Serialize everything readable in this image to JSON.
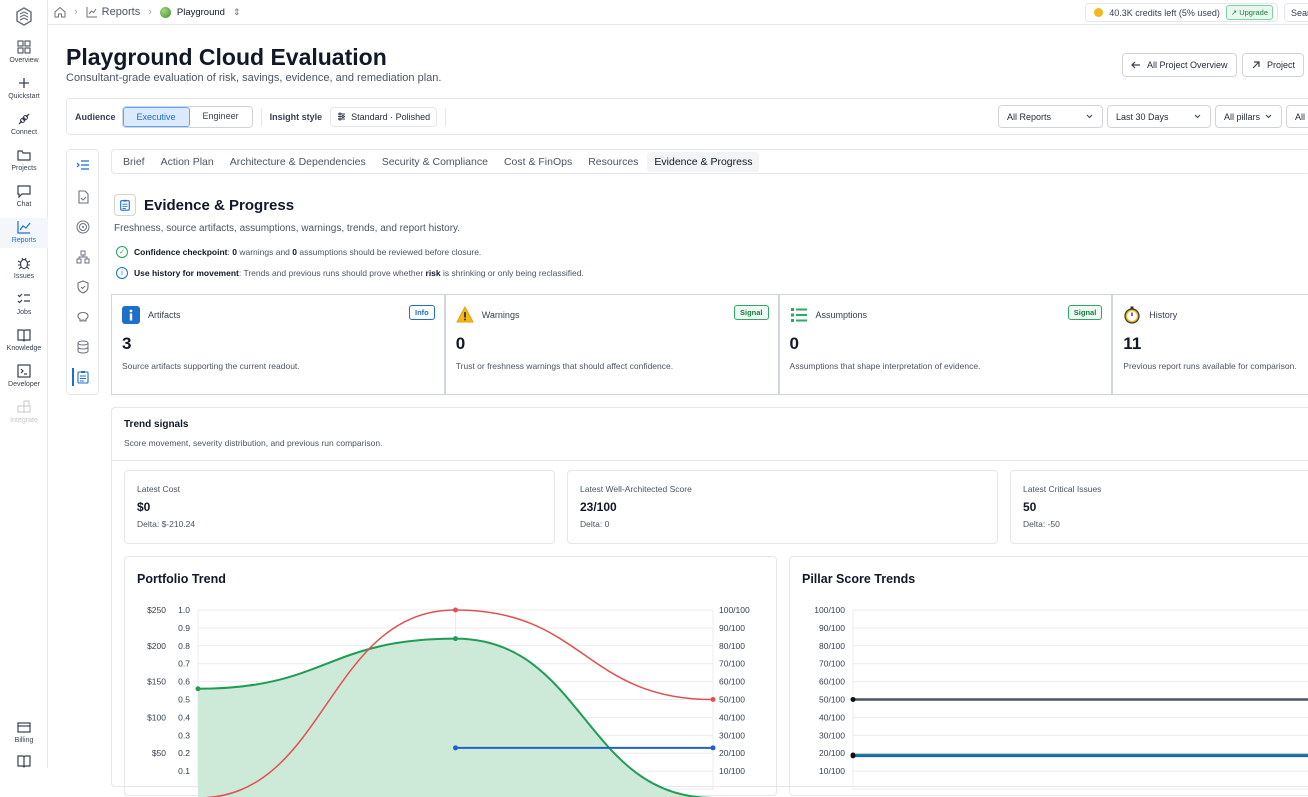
{
  "nav": {
    "items": [
      {
        "label": "Overview",
        "icon": "grid-icon"
      },
      {
        "label": "Quickstart",
        "icon": "plus-icon"
      },
      {
        "label": "Connect",
        "icon": "plug-icon"
      },
      {
        "label": "Projects",
        "icon": "folder-icon"
      },
      {
        "label": "Chat",
        "icon": "chat-icon"
      },
      {
        "label": "Reports",
        "icon": "chart-icon",
        "active": true
      },
      {
        "label": "Issues",
        "icon": "bug-icon"
      },
      {
        "label": "Jobs",
        "icon": "checklist-icon"
      },
      {
        "label": "Knowledge",
        "icon": "book-icon"
      },
      {
        "label": "Developer",
        "icon": "terminal-icon"
      },
      {
        "label": "Integrate",
        "icon": "puzzle-icon",
        "disabled": true
      }
    ],
    "billing_label": "Billing"
  },
  "breadcrumb": {
    "reports": "Reports",
    "project": "Playground"
  },
  "credits": {
    "text": "40.3K credits left (5% used)",
    "upgrade": "Upgrade"
  },
  "search": {
    "label": "Search"
  },
  "header": {
    "title": "Playground Cloud Evaluation",
    "subtitle": "Consultant-grade evaluation of risk, savings, evidence, and remediation plan.",
    "overview_button": "All Project Overview",
    "project_button": "Project"
  },
  "controls": {
    "audience_label": "Audience",
    "audience_options": [
      "Executive",
      "Engineer"
    ],
    "audience_selected": "Executive",
    "insight_label": "Insight style",
    "insight_value": "Standard · Polished",
    "filters": [
      "All Reports",
      "Last 30 Days",
      "All pillars",
      "All"
    ]
  },
  "tabs": [
    "Brief",
    "Action Plan",
    "Architecture & Dependencies",
    "Security & Compliance",
    "Cost & FinOps",
    "Resources",
    "Evidence & Progress"
  ],
  "active_tab": "Evidence & Progress",
  "section": {
    "title": "Evidence & Progress",
    "subtitle": "Freshness, source artifacts, assumptions, warnings, trends, and report history.",
    "note1": {
      "label": "Confidence checkpoint",
      "t1": ": ",
      "n1": "0",
      "t2": " warnings and ",
      "n2": "0",
      "t3": " assumptions should be reviewed before closure."
    },
    "note2": {
      "label": "Use history for movement",
      "t1": ": Trends and previous runs should prove whether ",
      "b": "risk",
      "t2": " is shrinking or only being reclassified."
    }
  },
  "metrics": [
    {
      "title": "Artifacts",
      "badge": "Info",
      "value": "3",
      "desc": "Source artifacts supporting the current readout."
    },
    {
      "title": "Warnings",
      "badge": "Signal",
      "value": "0",
      "desc": "Trust or freshness warnings that should affect confidence."
    },
    {
      "title": "Assumptions",
      "badge": "Signal",
      "value": "0",
      "desc": "Assumptions that shape interpretation of evidence."
    },
    {
      "title": "History",
      "badge": "",
      "value": "11",
      "desc": "Previous report runs available for comparison."
    }
  ],
  "trend": {
    "title": "Trend signals",
    "subtitle": "Score movement, severity distribution, and previous run comparison.",
    "kpis": [
      {
        "label": "Latest Cost",
        "value": "$0",
        "delta": "Delta: $-210.24"
      },
      {
        "label": "Latest Well-Architected Score",
        "value": "23/100",
        "delta": "Delta: 0"
      },
      {
        "label": "Latest Critical Issues",
        "value": "50",
        "delta": "Delta: -50"
      }
    ]
  },
  "chart_data": [
    {
      "type": "line",
      "title": "Portfolio Trend",
      "y_left_cost_ticks": [
        "$250",
        "$200",
        "$150",
        "$100",
        "$50"
      ],
      "y_left_cost_range": [
        0,
        250
      ],
      "y_left_ratio_ticks": [
        "1.0",
        "0.9",
        "0.8",
        "0.7",
        "0.6",
        "0.5",
        "0.4",
        "0.3",
        "0.2",
        "0.1"
      ],
      "y_right_ticks": [
        "100/100",
        "90/100",
        "80/100",
        "70/100",
        "60/100",
        "50/100",
        "40/100",
        "30/100",
        "20/100",
        "10/100"
      ],
      "y_right_range": [
        0,
        100
      ],
      "x": [
        0,
        1,
        2
      ],
      "series": [
        {
          "color": "#e05252",
          "values": [
            -0.05,
            1.0,
            0.5
          ],
          "axis": "ratio"
        },
        {
          "color": "#1f9d55",
          "values": [
            0.56,
            0.84,
            -0.05
          ],
          "axis": "ratio",
          "fill": true
        },
        {
          "color": "#1f63c6",
          "values": [
            null,
            23,
            23
          ],
          "axis": "score"
        }
      ]
    },
    {
      "type": "line",
      "title": "Pillar Score Trends",
      "y_ticks": [
        "100/100",
        "90/100",
        "80/100",
        "70/100",
        "60/100",
        "50/100",
        "40/100",
        "30/100",
        "20/100",
        "10/100"
      ],
      "y_range": [
        0,
        100
      ],
      "series": [
        {
          "color": "#4b5563",
          "values": [
            50,
            50
          ]
        },
        {
          "color": "#1f9d55",
          "values": [
            19,
            19
          ]
        },
        {
          "color": "#1f63c6",
          "values": [
            18.5,
            18.5
          ]
        }
      ]
    }
  ],
  "colors": {
    "accent": "#1d6fc9",
    "signal": "#17803d",
    "info": "#1d6fc9"
  }
}
